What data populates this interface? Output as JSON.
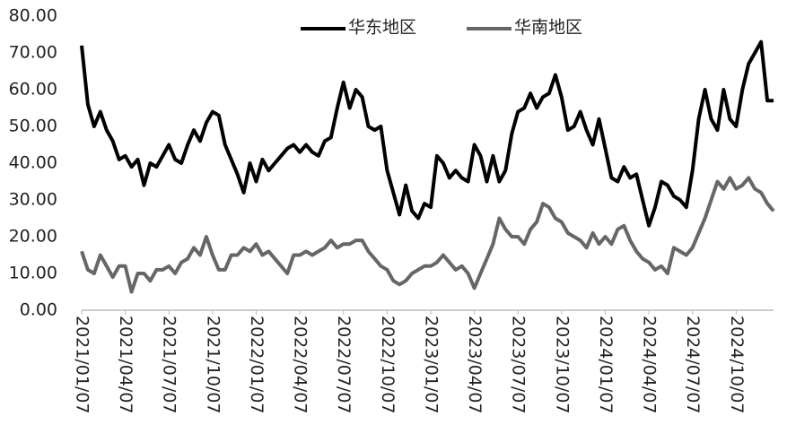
{
  "chart_data": {
    "type": "line",
    "categories": [
      "2021/01/07",
      null,
      null,
      null,
      null,
      null,
      null,
      "2021/04/07",
      null,
      null,
      null,
      null,
      null,
      null,
      "2021/07/07",
      null,
      null,
      null,
      null,
      null,
      null,
      "2021/10/07",
      null,
      null,
      null,
      null,
      null,
      null,
      "2022/01/07",
      null,
      null,
      null,
      null,
      null,
      null,
      "2022/04/07",
      null,
      null,
      null,
      null,
      null,
      null,
      "2022/07/07",
      null,
      null,
      null,
      null,
      null,
      null,
      "2022/10/07",
      null,
      null,
      null,
      null,
      null,
      null,
      "2023/01/07",
      null,
      null,
      null,
      null,
      null,
      null,
      "2023/04/07",
      null,
      null,
      null,
      null,
      null,
      null,
      "2023/07/07",
      null,
      null,
      null,
      null,
      null,
      null,
      "2023/10/07",
      null,
      null,
      null,
      null,
      null,
      null,
      "2024/01/07",
      null,
      null,
      null,
      null,
      null,
      null,
      "2024/04/07",
      null,
      null,
      null,
      null,
      null,
      null,
      "2024/07/07",
      null,
      null,
      null,
      null,
      null,
      null,
      "2024/10/07",
      null,
      null,
      null,
      null,
      null,
      null
    ],
    "series": [
      {
        "name": "华东地区",
        "color": "#000000",
        "values": [
          72,
          56,
          50,
          54,
          49,
          46,
          41,
          42,
          39,
          41,
          34,
          40,
          39,
          42,
          45,
          41,
          40,
          45,
          49,
          46,
          51,
          54,
          53,
          45,
          41,
          37,
          32,
          40,
          35,
          41,
          38,
          40,
          42,
          44,
          45,
          43,
          45,
          43,
          42,
          46,
          47,
          55,
          62,
          55,
          60,
          58,
          50,
          49,
          50,
          38,
          32,
          26,
          34,
          27,
          25,
          29,
          28,
          42,
          40,
          36,
          38,
          36,
          35,
          45,
          42,
          35,
          42,
          35,
          38,
          48,
          54,
          55,
          59,
          55,
          58,
          59,
          64,
          58,
          49,
          50,
          54,
          49,
          45,
          52,
          44,
          36,
          35,
          39,
          36,
          37,
          30,
          23,
          28,
          35,
          34,
          31,
          30,
          28,
          38,
          52,
          60,
          52,
          49,
          60,
          52,
          50,
          60,
          67,
          70,
          73,
          57,
          57
        ]
      },
      {
        "name": "华南地区",
        "color": "#666666",
        "values": [
          16,
          11,
          10,
          15,
          12,
          9,
          12,
          12,
          5,
          10,
          10,
          8,
          11,
          11,
          12,
          10,
          13,
          14,
          17,
          15,
          20,
          15,
          11,
          11,
          15,
          15,
          17,
          16,
          18,
          15,
          16,
          14,
          12,
          10,
          15,
          15,
          16,
          15,
          16,
          17,
          19,
          17,
          18,
          18,
          19,
          19,
          16,
          14,
          12,
          11,
          8,
          7,
          8,
          10,
          11,
          12,
          12,
          13,
          15,
          13,
          11,
          12,
          10,
          6,
          10,
          14,
          18,
          25,
          22,
          20,
          20,
          18,
          22,
          24,
          29,
          28,
          25,
          24,
          21,
          20,
          19,
          17,
          21,
          18,
          20,
          18,
          22,
          23,
          19,
          16,
          14,
          13,
          11,
          12,
          10,
          17,
          16,
          15,
          17,
          21,
          25,
          30,
          35,
          33,
          36,
          33,
          34,
          36,
          33,
          32,
          29,
          27
        ]
      }
    ],
    "ylim": [
      0,
      80
    ],
    "yticks": [
      {
        "value": 0,
        "label": "0.00"
      },
      {
        "value": 10,
        "label": "10.00"
      },
      {
        "value": 20,
        "label": "20.00"
      },
      {
        "value": 30,
        "label": "30.00"
      },
      {
        "value": 40,
        "label": "40.00"
      },
      {
        "value": 50,
        "label": "50.00"
      },
      {
        "value": 60,
        "label": "60.00"
      },
      {
        "value": 70,
        "label": "70.00"
      },
      {
        "value": 80,
        "label": "80.00"
      }
    ],
    "grid": false,
    "legend": "top"
  }
}
